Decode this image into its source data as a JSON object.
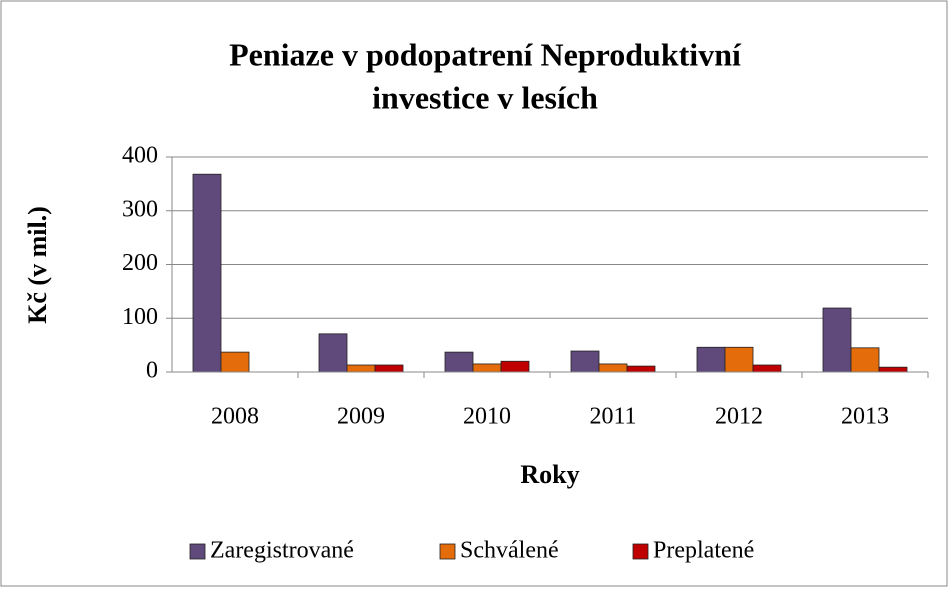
{
  "chart_data": {
    "type": "bar",
    "title": [
      "Peniaze v podopatrení Neproduktivní",
      "investice v lesích"
    ],
    "xlabel": "Roky",
    "ylabel": "Kč (v mil.)",
    "categories": [
      "2008",
      "2009",
      "2010",
      "2011",
      "2012",
      "2013"
    ],
    "series": [
      {
        "name": "Zaregistrované",
        "color": "#604a7b",
        "values": [
          368,
          71,
          37,
          39,
          46,
          119
        ]
      },
      {
        "name": "Schválené",
        "color": "#e46c0a",
        "values": [
          37,
          13,
          15,
          15,
          46,
          45
        ]
      },
      {
        "name": "Preplatené",
        "color": "#c00000",
        "values": [
          0,
          13,
          20,
          11,
          13,
          9
        ]
      }
    ],
    "ylim": [
      0,
      400
    ],
    "yticks": [
      0,
      100,
      200,
      300,
      400
    ],
    "grid": true,
    "legend": "bottom"
  }
}
